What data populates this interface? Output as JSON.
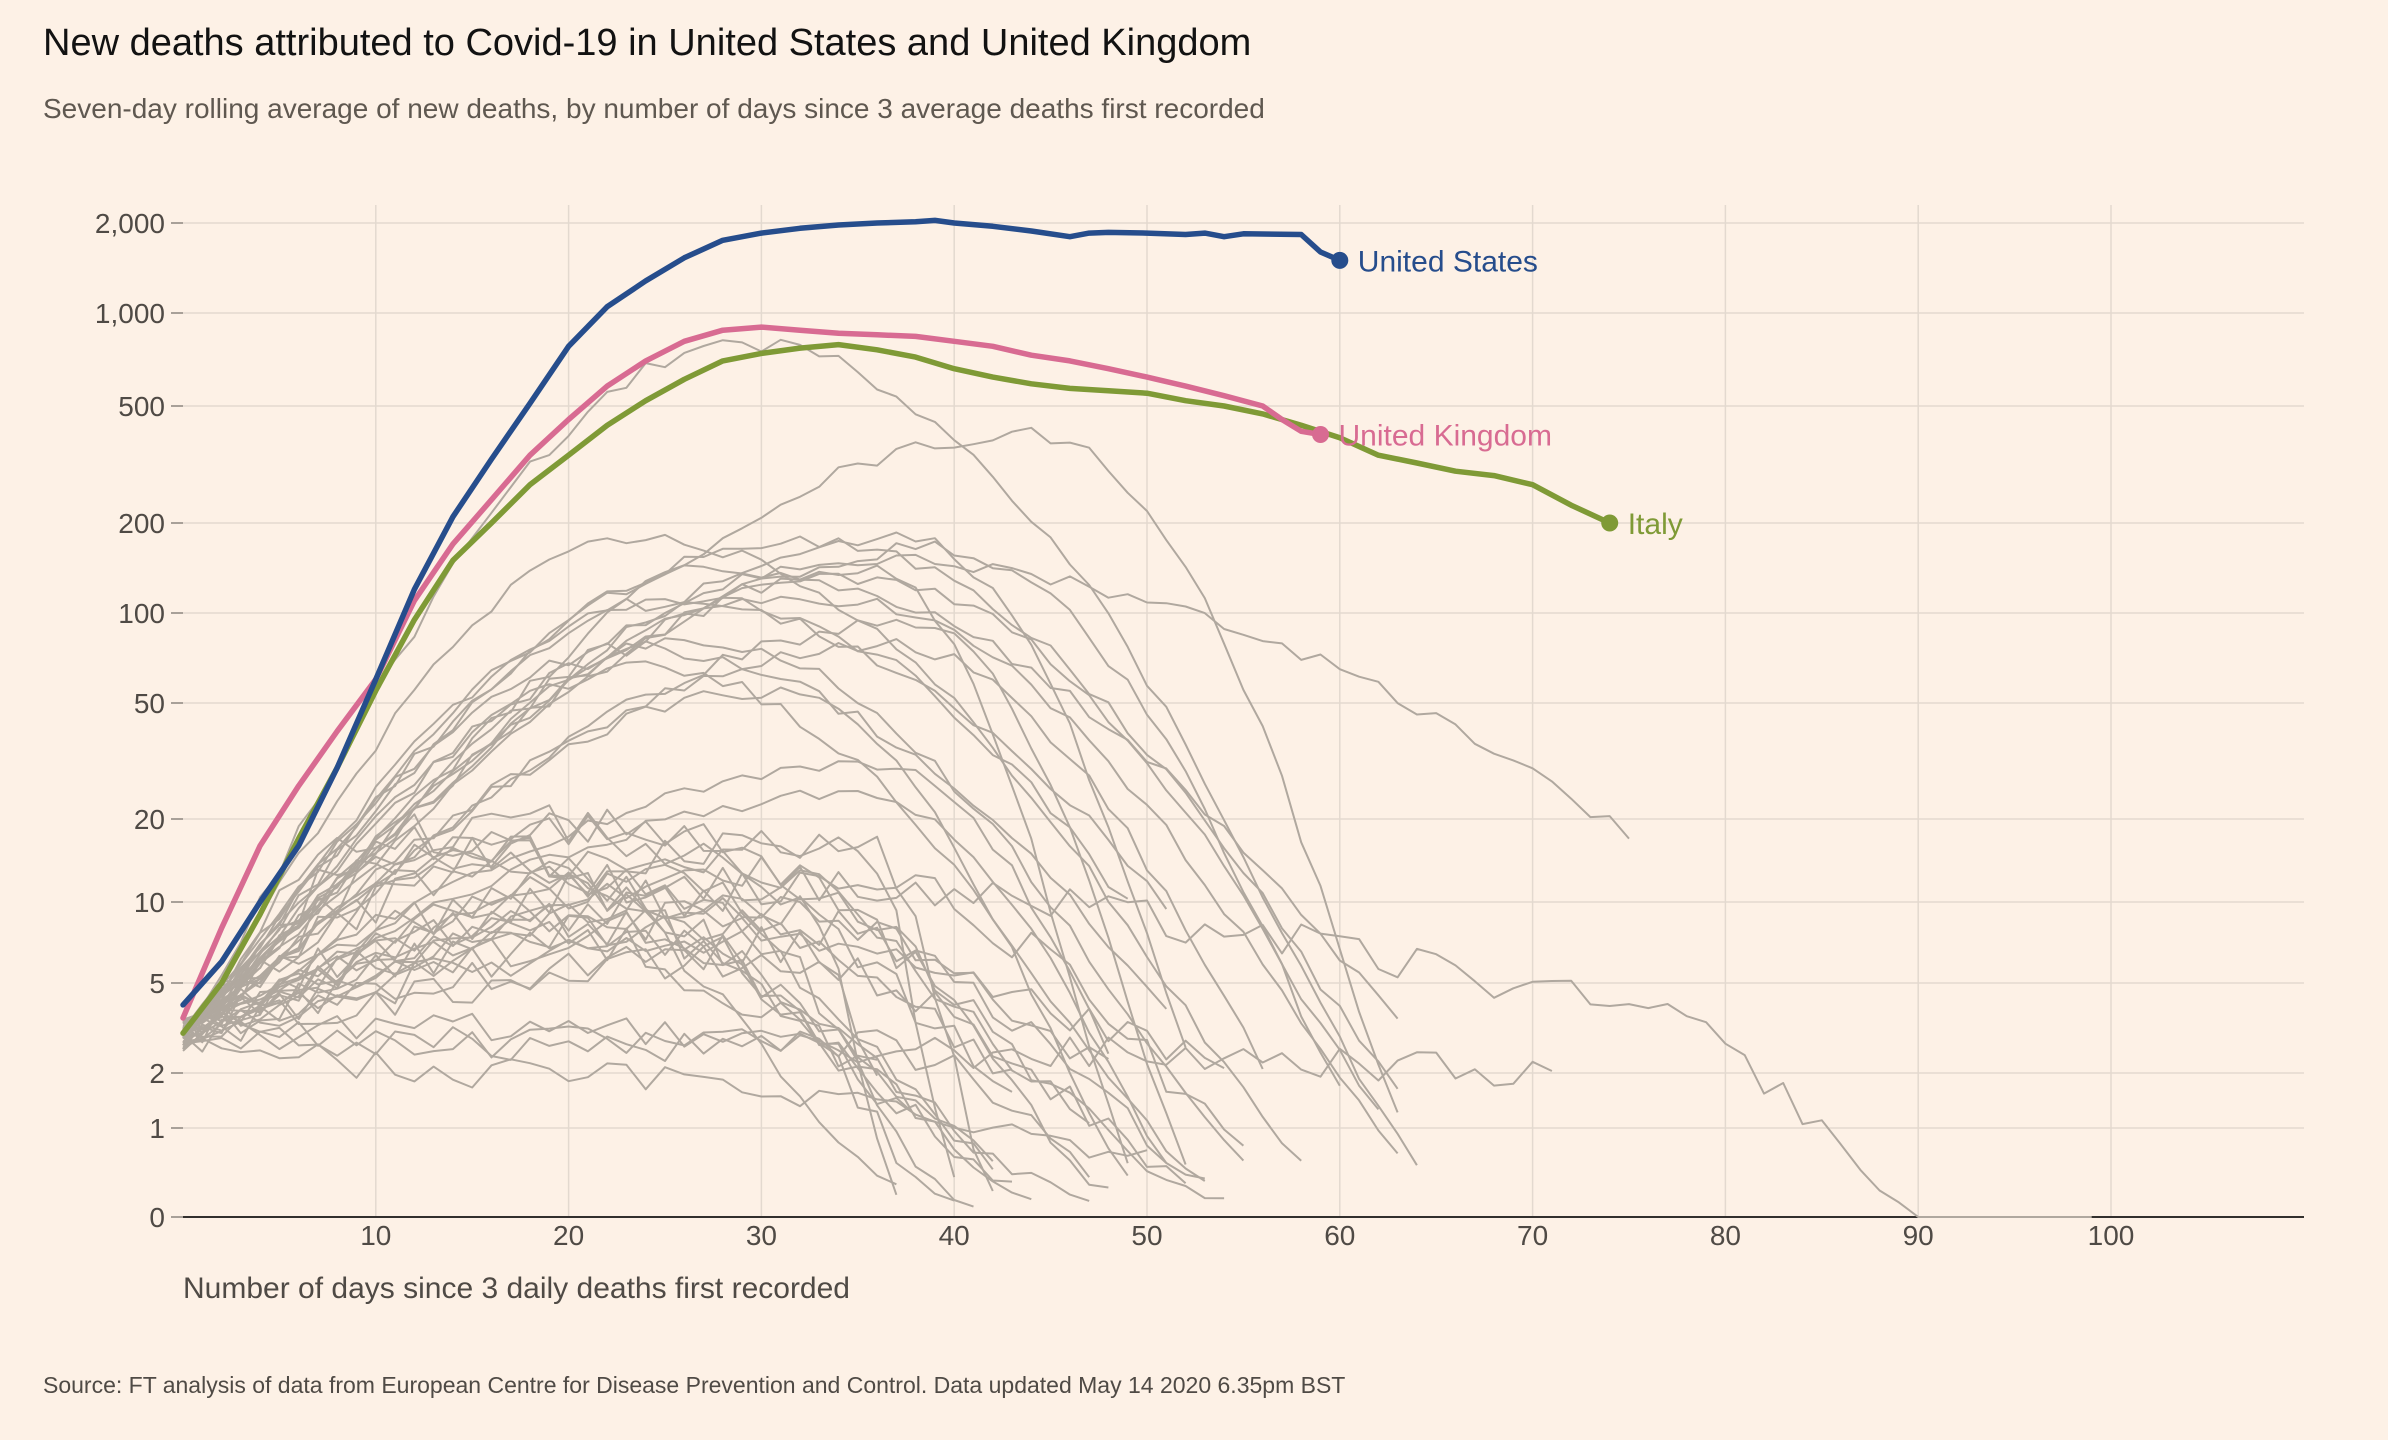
{
  "title": "New deaths attributed to Covid-19 in United States and United Kingdom",
  "subtitle": "Seven-day rolling average of new deaths, by number of days since 3 average deaths first recorded",
  "source": "Source: FT analysis of data from European Centre for Disease Prevention and Control. Data updated May 14 2020 6.35pm BST",
  "chart_data": {
    "type": "line",
    "title": "New deaths attributed to Covid-19 in United States and United Kingdom",
    "subtitle": "Seven-day rolling average of new deaths, by number of days since 3 average deaths first recorded",
    "xlabel": "Number of days since 3 daily deaths first recorded",
    "ylabel": "",
    "xlim": [
      0,
      110
    ],
    "ylim": [
      0,
      2700
    ],
    "yscale": "log",
    "grid": true,
    "legend": "direct labels at line ends",
    "x_ticks": [
      10,
      20,
      30,
      40,
      50,
      60,
      70,
      80,
      90,
      100
    ],
    "x_tick_labels": [
      "10",
      "20",
      "30",
      "40",
      "50",
      "60",
      "70",
      "80",
      "90",
      "100"
    ],
    "y_ticks": [
      0,
      1,
      2,
      5,
      10,
      20,
      50,
      100,
      200,
      500,
      1000,
      2000
    ],
    "y_tick_labels": [
      "0",
      "1",
      "2",
      "5",
      "10",
      "20",
      "50",
      "100",
      "200",
      "500",
      "1,000",
      "2,000"
    ],
    "colors": {
      "United States": "#264D8C",
      "United Kingdom": "#D86B92",
      "Italy": "#7F9A36",
      "other": "#B0A89F",
      "grid": "#E3D9CF",
      "axis": "#33302E"
    },
    "series": [
      {
        "name": "United States",
        "color": "#264D8C",
        "x": [
          0,
          2,
          4,
          6,
          8,
          10,
          12,
          14,
          16,
          18,
          20,
          22,
          24,
          26,
          28,
          30,
          32,
          34,
          36,
          38,
          39,
          40,
          42,
          44,
          46,
          47,
          48,
          50,
          52,
          53,
          54,
          55,
          58,
          59,
          60
        ],
        "values": [
          4,
          6,
          10,
          16,
          30,
          60,
          120,
          210,
          330,
          510,
          780,
          1050,
          1280,
          1530,
          1750,
          1850,
          1920,
          1970,
          2000,
          2020,
          2040,
          2000,
          1950,
          1880,
          1800,
          1850,
          1860,
          1850,
          1830,
          1850,
          1800,
          1840,
          1830,
          1600,
          1500
        ]
      },
      {
        "name": "United Kingdom",
        "color": "#D86B92",
        "x": [
          0,
          2,
          4,
          6,
          8,
          10,
          12,
          14,
          16,
          18,
          20,
          22,
          24,
          26,
          28,
          30,
          32,
          34,
          36,
          38,
          40,
          42,
          44,
          46,
          48,
          50,
          52,
          54,
          56,
          57,
          58,
          59
        ],
        "values": [
          3.5,
          8,
          16,
          26,
          40,
          60,
          110,
          170,
          240,
          340,
          450,
          580,
          700,
          810,
          880,
          900,
          880,
          860,
          850,
          840,
          810,
          780,
          730,
          700,
          660,
          620,
          580,
          540,
          500,
          450,
          410,
          400
        ]
      },
      {
        "name": "Italy",
        "color": "#7F9A36",
        "x": [
          0,
          2,
          4,
          6,
          8,
          10,
          12,
          14,
          16,
          18,
          20,
          22,
          24,
          26,
          28,
          30,
          32,
          34,
          36,
          38,
          40,
          42,
          44,
          46,
          48,
          50,
          52,
          54,
          56,
          58,
          60,
          62,
          64,
          66,
          68,
          70,
          72,
          74
        ],
        "values": [
          3,
          5,
          9,
          17,
          30,
          55,
          95,
          150,
          200,
          270,
          340,
          430,
          520,
          610,
          700,
          740,
          770,
          790,
          760,
          720,
          660,
          620,
          590,
          570,
          560,
          550,
          520,
          500,
          470,
          430,
          390,
          340,
          320,
          300,
          290,
          270,
          230,
          200
        ]
      }
    ],
    "annotations": [
      "United States",
      "United Kingdom",
      "Italy"
    ]
  }
}
